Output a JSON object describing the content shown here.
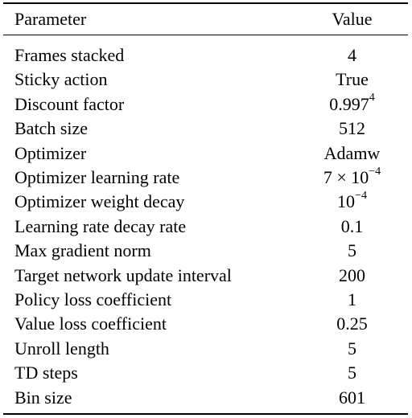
{
  "header": {
    "parameter": "Parameter",
    "value": "Value"
  },
  "rows": [
    {
      "parameter": "Frames stacked",
      "value": "4"
    },
    {
      "parameter": "Sticky action",
      "value": "True"
    },
    {
      "parameter": "Discount factor",
      "value": "0.997",
      "value_sup": "4"
    },
    {
      "parameter": "Batch size",
      "value": "512"
    },
    {
      "parameter": "Optimizer",
      "value": "Adamw"
    },
    {
      "parameter": "Optimizer learning rate",
      "value": "7 × 10",
      "value_sup": "−4"
    },
    {
      "parameter": "Optimizer weight decay",
      "value": "10",
      "value_sup": "−4"
    },
    {
      "parameter": "Learning rate decay rate",
      "value": "0.1"
    },
    {
      "parameter": "Max gradient norm",
      "value": "5"
    },
    {
      "parameter": "Target network update interval",
      "value": "200"
    },
    {
      "parameter": "Policy loss coefficient",
      "value": "1"
    },
    {
      "parameter": "Value loss coefficient",
      "value": "0.25"
    },
    {
      "parameter": "Unroll length",
      "value": "5"
    },
    {
      "parameter": "TD steps",
      "value": "5"
    },
    {
      "parameter": "Bin size",
      "value": "601"
    }
  ]
}
